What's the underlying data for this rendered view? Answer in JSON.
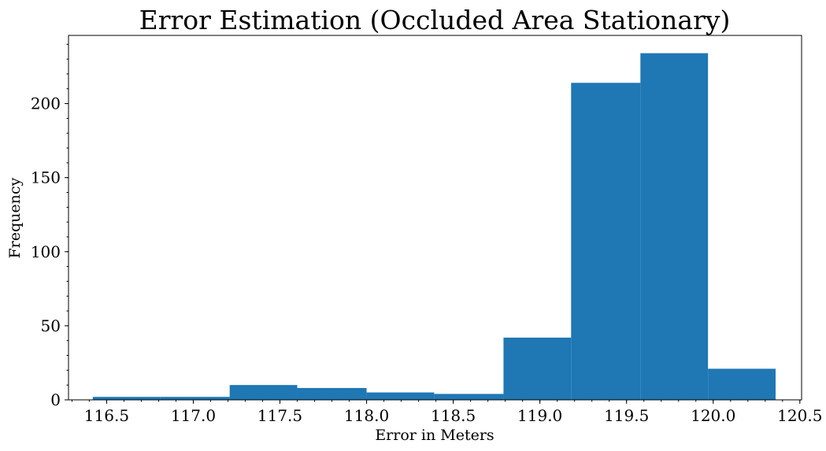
{
  "chart_data": {
    "type": "bar",
    "title": "Error Estimation (Occluded Area Stationary)",
    "xlabel": "Error in Meters",
    "ylabel": "Frequency",
    "bin_edges": [
      116.42,
      116.81,
      117.21,
      117.6,
      118.0,
      118.39,
      118.79,
      119.18,
      119.58,
      119.97,
      120.36
    ],
    "values": [
      2,
      2,
      10,
      8,
      5,
      4,
      42,
      214,
      234,
      21
    ],
    "xlim": [
      116.28,
      120.51
    ],
    "ylim": [
      0,
      246
    ],
    "xticks": [
      "116.5",
      "117.0",
      "117.5",
      "118.0",
      "118.5",
      "119.0",
      "119.5",
      "120.0",
      "120.5"
    ],
    "yticks": [
      "0",
      "50",
      "100",
      "150",
      "200"
    ],
    "xtick_values": [
      116.5,
      117.0,
      117.5,
      118.0,
      118.5,
      119.0,
      119.5,
      120.0,
      120.5
    ],
    "ytick_values": [
      0,
      50,
      100,
      150,
      200
    ],
    "grid": false,
    "bar_color": "#1f77b4"
  }
}
